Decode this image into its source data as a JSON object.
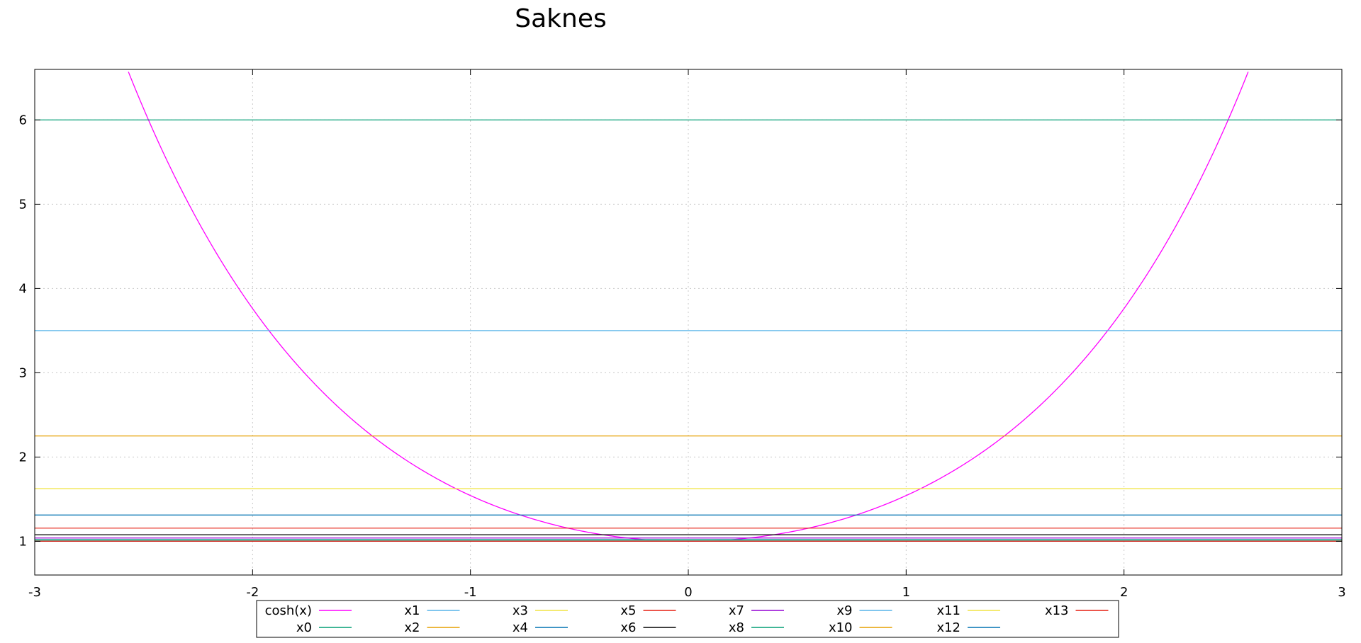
{
  "chart_data": {
    "type": "line",
    "title": "Saknes",
    "xlabel": "",
    "ylabel": "",
    "xlim": [
      -3,
      3
    ],
    "ylim": [
      0.6,
      6.6
    ],
    "grid": true,
    "legend_position": "bottom",
    "x_ticks": [
      -3,
      -2,
      -1,
      0,
      1,
      2,
      3
    ],
    "x_tick_labels": [
      "-3",
      "-2",
      "-1",
      "0",
      "1",
      "2",
      "3"
    ],
    "y_ticks": [
      1,
      2,
      3,
      4,
      5,
      6
    ],
    "y_tick_labels": [
      "1",
      "2",
      "3",
      "4",
      "5",
      "6"
    ],
    "series": [
      {
        "name": "cosh(x)",
        "kind": "function",
        "function": "cosh",
        "color": "#ff00ff"
      },
      {
        "name": "x0",
        "kind": "hline",
        "y": 6.0,
        "color": "#009e73"
      },
      {
        "name": "x1",
        "kind": "hline",
        "y": 3.5,
        "color": "#56b4e9"
      },
      {
        "name": "x2",
        "kind": "hline",
        "y": 2.25,
        "color": "#e69f00"
      },
      {
        "name": "x3",
        "kind": "hline",
        "y": 1.625,
        "color": "#f0e442"
      },
      {
        "name": "x4",
        "kind": "hline",
        "y": 1.3125,
        "color": "#0072b2"
      },
      {
        "name": "x5",
        "kind": "hline",
        "y": 1.156,
        "color": "#e51e10"
      },
      {
        "name": "x6",
        "kind": "hline",
        "y": 1.078,
        "color": "#000000"
      },
      {
        "name": "x7",
        "kind": "hline",
        "y": 1.039,
        "color": "#9400d3"
      },
      {
        "name": "x8",
        "kind": "hline",
        "y": 1.02,
        "color": "#009e73"
      },
      {
        "name": "x9",
        "kind": "hline",
        "y": 1.01,
        "color": "#56b4e9"
      },
      {
        "name": "x10",
        "kind": "hline",
        "y": 1.005,
        "color": "#e69f00"
      },
      {
        "name": "x11",
        "kind": "hline",
        "y": 1.002,
        "color": "#f0e442"
      },
      {
        "name": "x12",
        "kind": "hline",
        "y": 1.001,
        "color": "#0072b2"
      },
      {
        "name": "x13",
        "kind": "hline",
        "y": 1.0006,
        "color": "#e51e10"
      }
    ]
  }
}
